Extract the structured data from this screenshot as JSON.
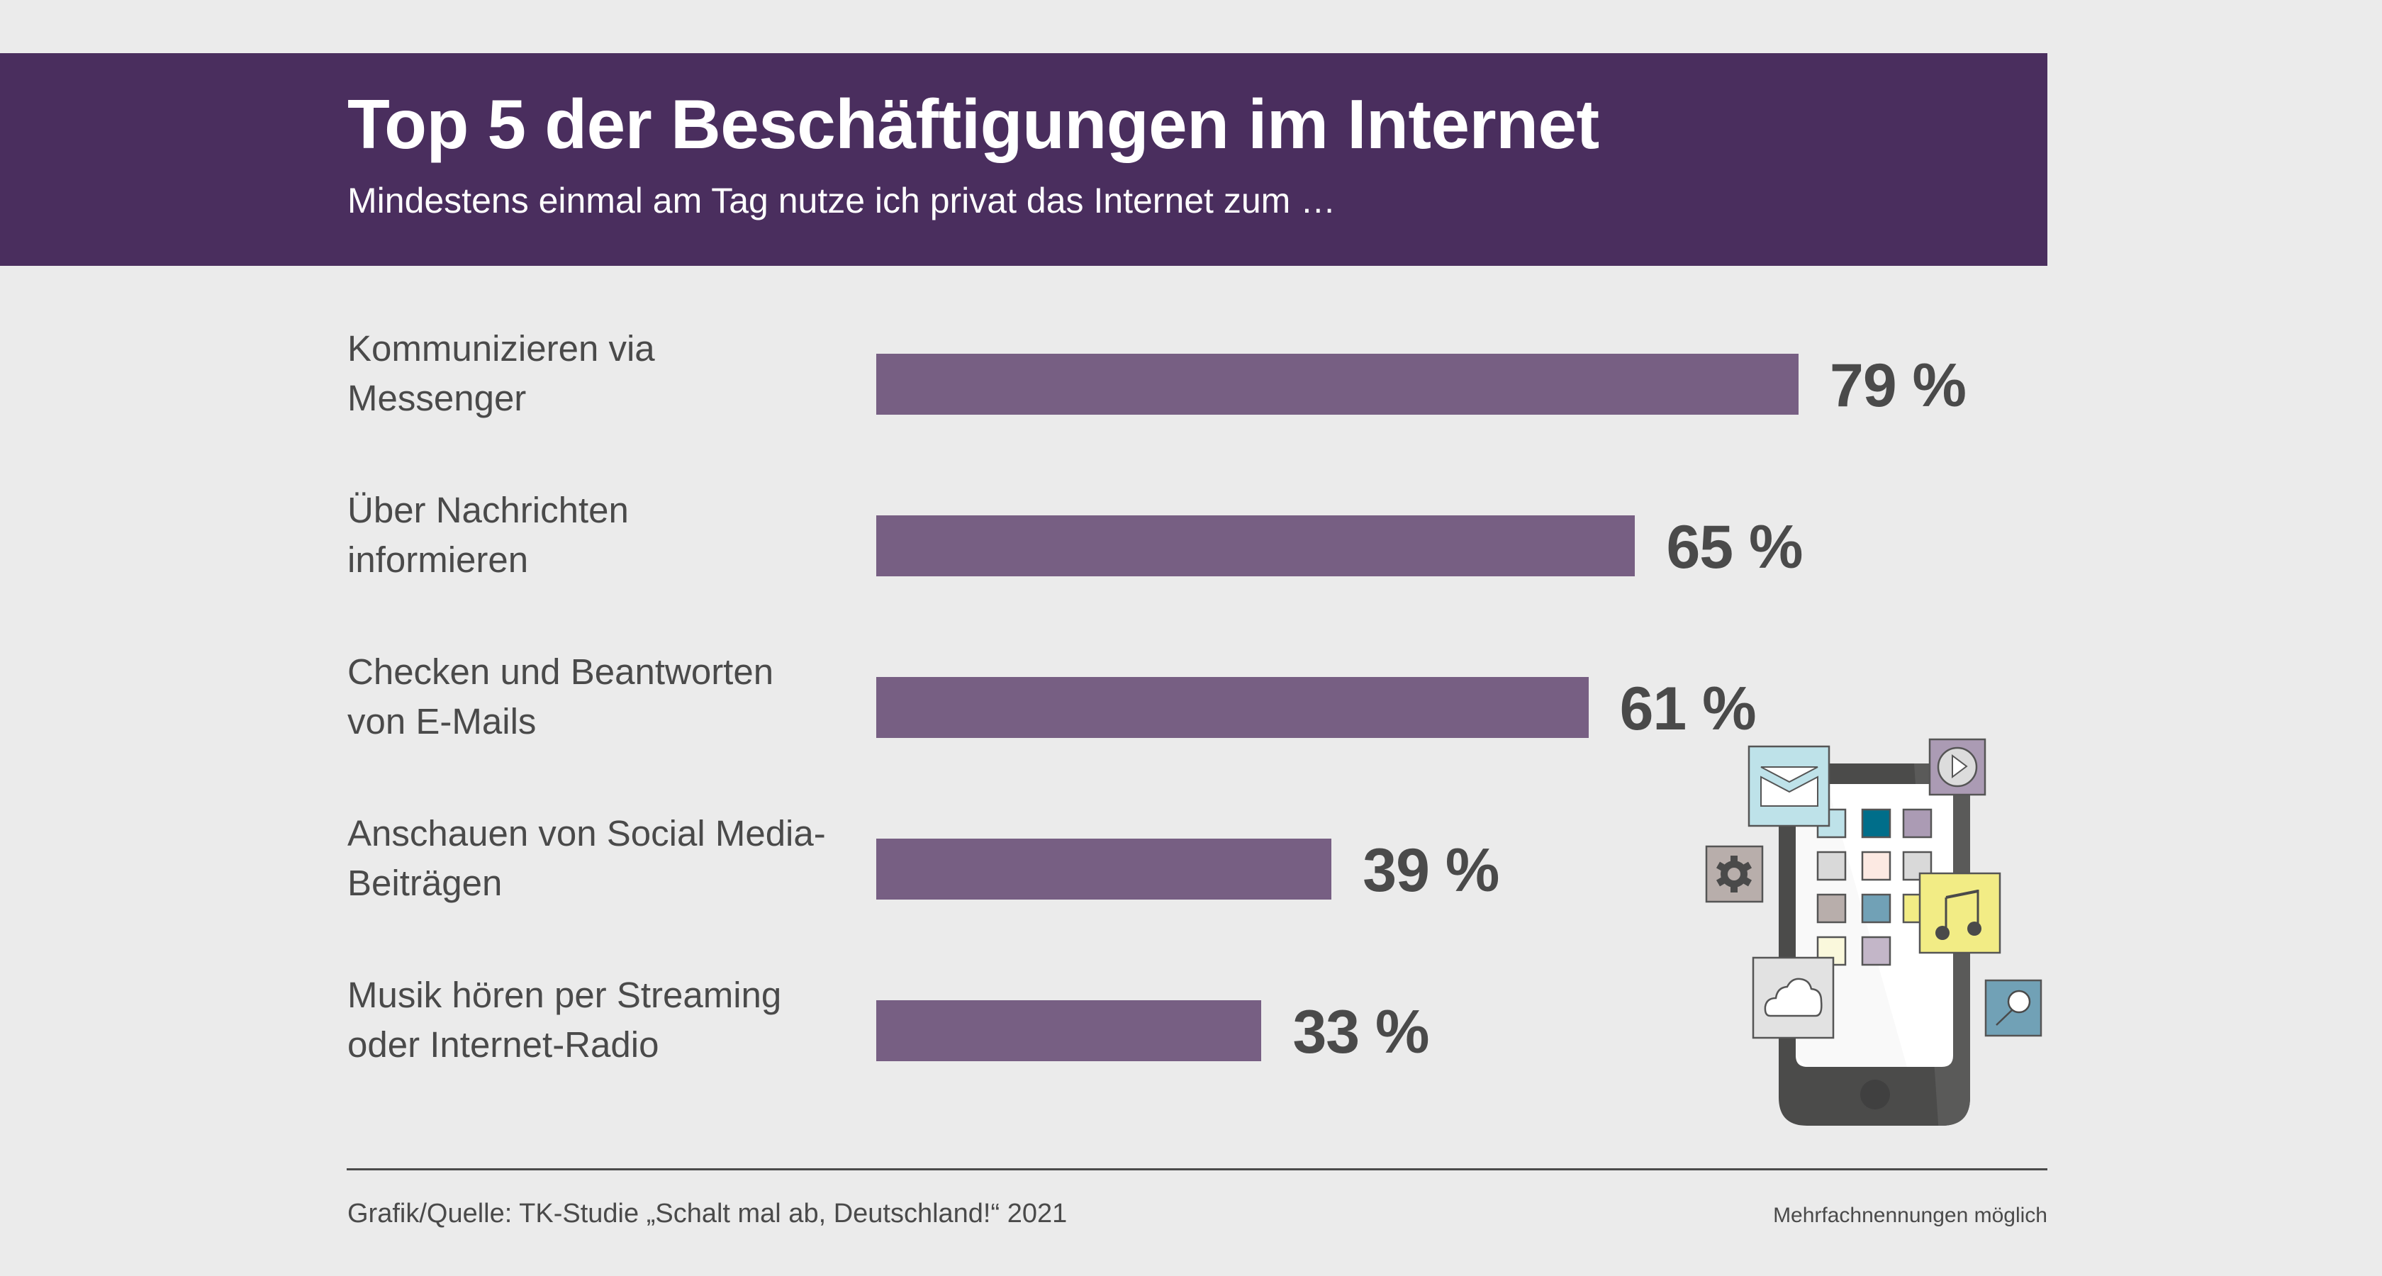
{
  "header": {
    "title": "Top 5 der Beschäftigungen im Internet",
    "subtitle": "Mindestens einmal am Tag nutze ich privat das Internet zum …"
  },
  "colors": {
    "header_bg": "#4a2e5e",
    "bar": "#775f83",
    "background": "#ebebeb",
    "text": "#4a4a4a"
  },
  "chart_data": {
    "type": "bar",
    "orientation": "horizontal",
    "title": "Top 5 der Beschäftigungen im Internet",
    "subtitle": "Mindestens einmal am Tag nutze ich privat das Internet zum …",
    "categories": [
      "Kommunizieren via Messenger",
      "Über Nachrichten informieren",
      "Checken und Beantworten von E-Mails",
      "Anschauen von Social Media-Beiträgen",
      "Musik hören per Streaming oder Internet-Radio"
    ],
    "category_labels_display": [
      "Kommunizieren via\nMessenger",
      "Über Nachrichten\ninformieren",
      "Checken und Beantworten\nvon E-Mails",
      "Anschauen von Social Media-\nBeiträgen",
      "Musik hören per Streaming\noder Internet-Radio"
    ],
    "values": [
      79,
      65,
      61,
      39,
      33
    ],
    "value_labels": [
      "79 %",
      "65 %",
      "61 %",
      "39 %",
      "33 %"
    ],
    "unit": "%",
    "xlim": [
      0,
      100
    ],
    "xlabel": "",
    "ylabel": "",
    "grid": false,
    "legend": "none",
    "bar_color": "#775f83"
  },
  "footer": {
    "source": "Grafik/Quelle: TK-Studie „Schalt mal ab, Deutschland!“ 2021",
    "note": "Mehrfachnennungen möglich"
  },
  "illustration": {
    "name": "smartphone-with-app-icons",
    "icons": [
      "mail-icon",
      "play-icon",
      "gear-icon",
      "music-note-icon",
      "cloud-icon",
      "search-icon"
    ],
    "app_tile_colors": [
      [
        "#bee2e9",
        "#006e8a",
        "#ab9bb4"
      ],
      [
        "#d9d9d9",
        "#fce9e2",
        "#d9d9d9"
      ],
      [
        "#b8aeab",
        "#71a1b6",
        "#f2ec85"
      ],
      [
        "#faf8dc",
        "#c3b6c8"
      ]
    ]
  }
}
